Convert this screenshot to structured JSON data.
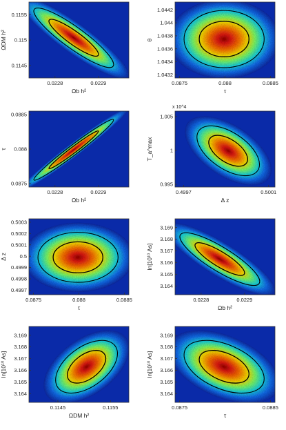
{
  "figure": {
    "background": "#ffffff",
    "frame_color": "#333333"
  },
  "chart_data": [
    {
      "type": "heatmap",
      "xlabel": "Ωb h²",
      "ylabel": "ΩDM h²",
      "exponent": "",
      "xlim": [
        0.02274,
        0.02297
      ],
      "ylim": [
        0.11425,
        0.11575
      ],
      "xticks": [
        0.0228,
        0.0229
      ],
      "xtick_labels": [
        "0.0228",
        "0.0229"
      ],
      "yticks": [
        0.1145,
        0.115,
        0.1155
      ],
      "ytick_labels": [
        "0.1145",
        "0.115",
        "0.1155"
      ],
      "center": [
        0.022843,
        0.115045
      ],
      "spread": [
        3.75e-05,
        0.00024
      ],
      "corr": -0.9,
      "contours": [
        "68%",
        "95%"
      ]
    },
    {
      "type": "heatmap",
      "xlabel": "τ",
      "ylabel": "θ",
      "exponent": "",
      "xlim": [
        0.08745,
        0.08855
      ],
      "ylim": [
        1.04315,
        1.04432
      ],
      "xticks": [
        0.0875,
        0.088,
        0.0885
      ],
      "xtick_labels": [
        "0.0875",
        "0.088",
        "0.0885"
      ],
      "yticks": [
        1.0432,
        1.0434,
        1.0436,
        1.0438,
        1.044,
        1.0442
      ],
      "ytick_labels": [
        "1.0432",
        "1.0434",
        "1.0436",
        "1.0438",
        "1.044",
        "1.0442"
      ],
      "center": [
        0.08799,
        1.04375
      ],
      "spread": [
        0.00018,
        0.00018
      ],
      "corr": 0,
      "contours": [
        "68%",
        "95%"
      ]
    },
    {
      "type": "heatmap",
      "xlabel": "Ωb h²",
      "ylabel": "τ",
      "exponent": "",
      "xlim": [
        0.02274,
        0.02297
      ],
      "ylim": [
        0.08745,
        0.08855
      ],
      "xticks": [
        0.0228,
        0.0229
      ],
      "xtick_labels": [
        "0.0228",
        "0.0229"
      ],
      "yticks": [
        0.0875,
        0.088,
        0.0885
      ],
      "ytick_labels": [
        "0.0875",
        "0.088",
        "0.0885"
      ],
      "center": [
        0.022843,
        0.08799
      ],
      "spread": [
        3.75e-05,
        0.00018
      ],
      "corr": 0.98,
      "contours": [
        "68%",
        "95%"
      ]
    },
    {
      "type": "heatmap",
      "xlabel": "Δ z",
      "ylabel": "T_a^max",
      "exponent": "x 10^4",
      "xlim": [
        0.49966,
        0.50013
      ],
      "ylim": [
        0.9946,
        1.0058
      ],
      "xticks": [
        0.4997,
        0.5001
      ],
      "xtick_labels": [
        "0.4997",
        "0.5001"
      ],
      "yticks": [
        0.995,
        1,
        1.005
      ],
      "ytick_labels": [
        "0.995",
        "1",
        "1.005"
      ],
      "center": [
        0.49991,
        0.99995
      ],
      "spread": [
        6e-05,
        0.0015
      ],
      "corr": -0.55,
      "contours": [
        "68%",
        "95%"
      ]
    },
    {
      "type": "heatmap",
      "xlabel": "τ",
      "ylabel": "Δ z",
      "exponent": "",
      "xlim": [
        0.08745,
        0.08855
      ],
      "ylim": [
        0.49966,
        0.50033
      ],
      "xticks": [
        0.0875,
        0.088,
        0.0885
      ],
      "xtick_labels": [
        "0.0875",
        "0.088",
        "0.0885"
      ],
      "yticks": [
        0.4997,
        0.4998,
        0.4999,
        0.5,
        0.5001,
        0.5002,
        0.5003
      ],
      "ytick_labels": [
        "0.4997",
        "0.4998",
        "0.4999",
        "0.5",
        "0.5001",
        "0.5002",
        "0.5003"
      ],
      "center": [
        0.08799,
        0.49999
      ],
      "spread": [
        0.00018,
        9e-05
      ],
      "corr": 0,
      "contours": [
        "68%",
        "95%"
      ]
    },
    {
      "type": "heatmap",
      "xlabel": "Ωb h²",
      "ylabel": "ln[10¹⁰ As]",
      "exponent": "",
      "xlim": [
        0.02274,
        0.02297
      ],
      "ylim": [
        3.16325,
        3.16975
      ],
      "xticks": [
        0.0228,
        0.0229
      ],
      "xtick_labels": [
        "0.0228",
        "0.0229"
      ],
      "yticks": [
        3.164,
        3.165,
        3.166,
        3.167,
        3.168,
        3.169
      ],
      "ytick_labels": [
        "3.164",
        "3.165",
        "3.166",
        "3.167",
        "3.168",
        "3.169"
      ],
      "center": [
        0.022843,
        3.1663
      ],
      "spread": [
        3.75e-05,
        0.00092
      ],
      "corr": -0.85,
      "contours": [
        "68%",
        "95%"
      ]
    },
    {
      "type": "heatmap",
      "xlabel": "ΩDM h²",
      "ylabel": "ln[10¹⁰ As]",
      "exponent": "",
      "xlim": [
        0.11395,
        0.11585
      ],
      "ylim": [
        3.16325,
        3.16975
      ],
      "xticks": [
        0.1145,
        0.1155
      ],
      "xtick_labels": [
        "0.1145",
        "0.1155"
      ],
      "yticks": [
        3.164,
        3.165,
        3.166,
        3.167,
        3.168,
        3.169
      ],
      "ytick_labels": [
        "3.164",
        "3.165",
        "3.166",
        "3.167",
        "3.168",
        "3.169"
      ],
      "center": [
        0.115045,
        3.1663
      ],
      "spread": [
        0.00024,
        0.00092
      ],
      "corr": 0.5,
      "contours": [
        "68%",
        "95%"
      ]
    },
    {
      "type": "heatmap",
      "xlabel": "τ",
      "ylabel": "ln[10¹⁰ As]",
      "exponent": "",
      "xlim": [
        0.08745,
        0.08855
      ],
      "ylim": [
        3.16325,
        3.16975
      ],
      "xticks": [
        0.0875,
        0.0885
      ],
      "xtick_labels": [
        "0.0875",
        "0.0885"
      ],
      "yticks": [
        3.164,
        3.165,
        3.166,
        3.167,
        3.168,
        3.169
      ],
      "ytick_labels": [
        "3.164",
        "3.165",
        "3.166",
        "3.167",
        "3.168",
        "3.169"
      ],
      "center": [
        0.08799,
        3.1663
      ],
      "spread": [
        0.00018,
        0.00092
      ],
      "corr": -0.45,
      "contours": [
        "68%",
        "95%"
      ]
    }
  ]
}
